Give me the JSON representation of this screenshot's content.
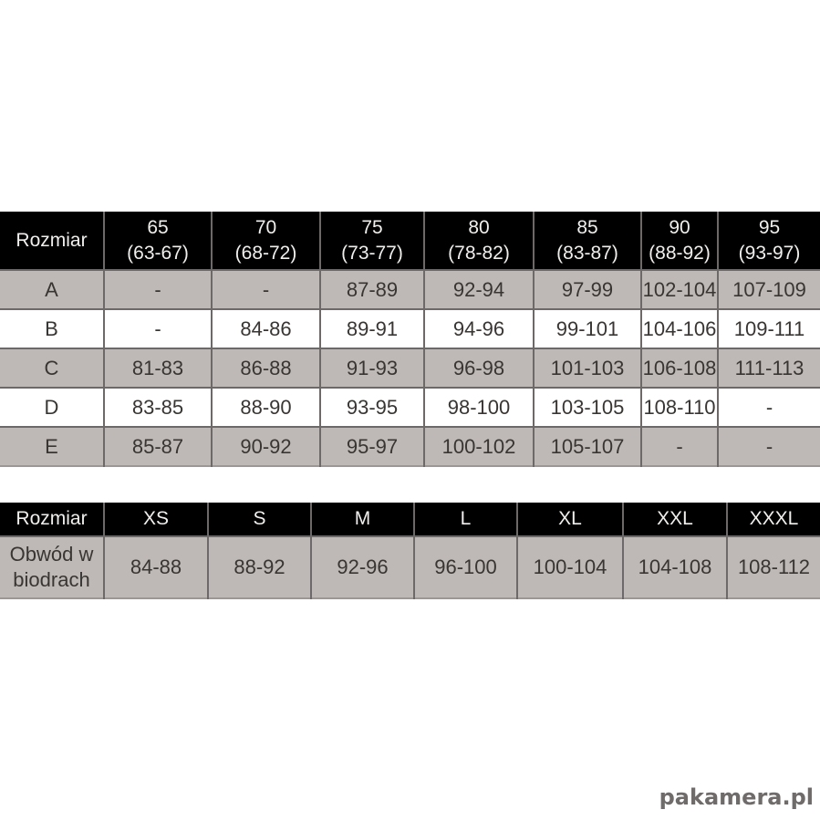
{
  "watermark": {
    "text": "pakamera.pl",
    "color": "#6f6b6b"
  },
  "colors": {
    "header_bg": "#000000",
    "header_text": "#f1efed",
    "row_gray": "#beb9b6",
    "row_white": "#ffffff",
    "border": "#6d6968",
    "cell_text": "#383533"
  },
  "chart_data": [
    {
      "type": "table",
      "corner_label": "Rozmiar",
      "columns": [
        {
          "size": "65",
          "range": "(63-67)"
        },
        {
          "size": "70",
          "range": "(68-72)"
        },
        {
          "size": "75",
          "range": "(73-77)"
        },
        {
          "size": "80",
          "range": "(78-82)"
        },
        {
          "size": "85",
          "range": "(83-87)"
        },
        {
          "size": "90",
          "range": "(88-92)"
        },
        {
          "size": "95",
          "range": "(93-97)"
        }
      ],
      "rows": [
        {
          "label": "A",
          "values": [
            "-",
            "-",
            "87-89",
            "92-94",
            "97-99",
            "102-104",
            "107-109"
          ]
        },
        {
          "label": "B",
          "values": [
            "-",
            "84-86",
            "89-91",
            "94-96",
            "99-101",
            "104-106",
            "109-111"
          ]
        },
        {
          "label": "C",
          "values": [
            "81-83",
            "86-88",
            "91-93",
            "96-98",
            "101-103",
            "106-108",
            "111-113"
          ]
        },
        {
          "label": "D",
          "values": [
            "83-85",
            "88-90",
            "93-95",
            "98-100",
            "103-105",
            "108-110",
            "-"
          ]
        },
        {
          "label": "E",
          "values": [
            "85-87",
            "90-92",
            "95-97",
            "100-102",
            "105-107",
            "-",
            "-"
          ]
        }
      ]
    },
    {
      "type": "table",
      "corner_label": "Rozmiar",
      "columns": [
        "XS",
        "S",
        "M",
        "L",
        "XL",
        "XXL",
        "XXXL"
      ],
      "rows": [
        {
          "label": "Obwód w biodrach",
          "values": [
            "84-88",
            "88-92",
            "92-96",
            "96-100",
            "100-104",
            "104-108",
            "108-112"
          ]
        }
      ]
    }
  ]
}
